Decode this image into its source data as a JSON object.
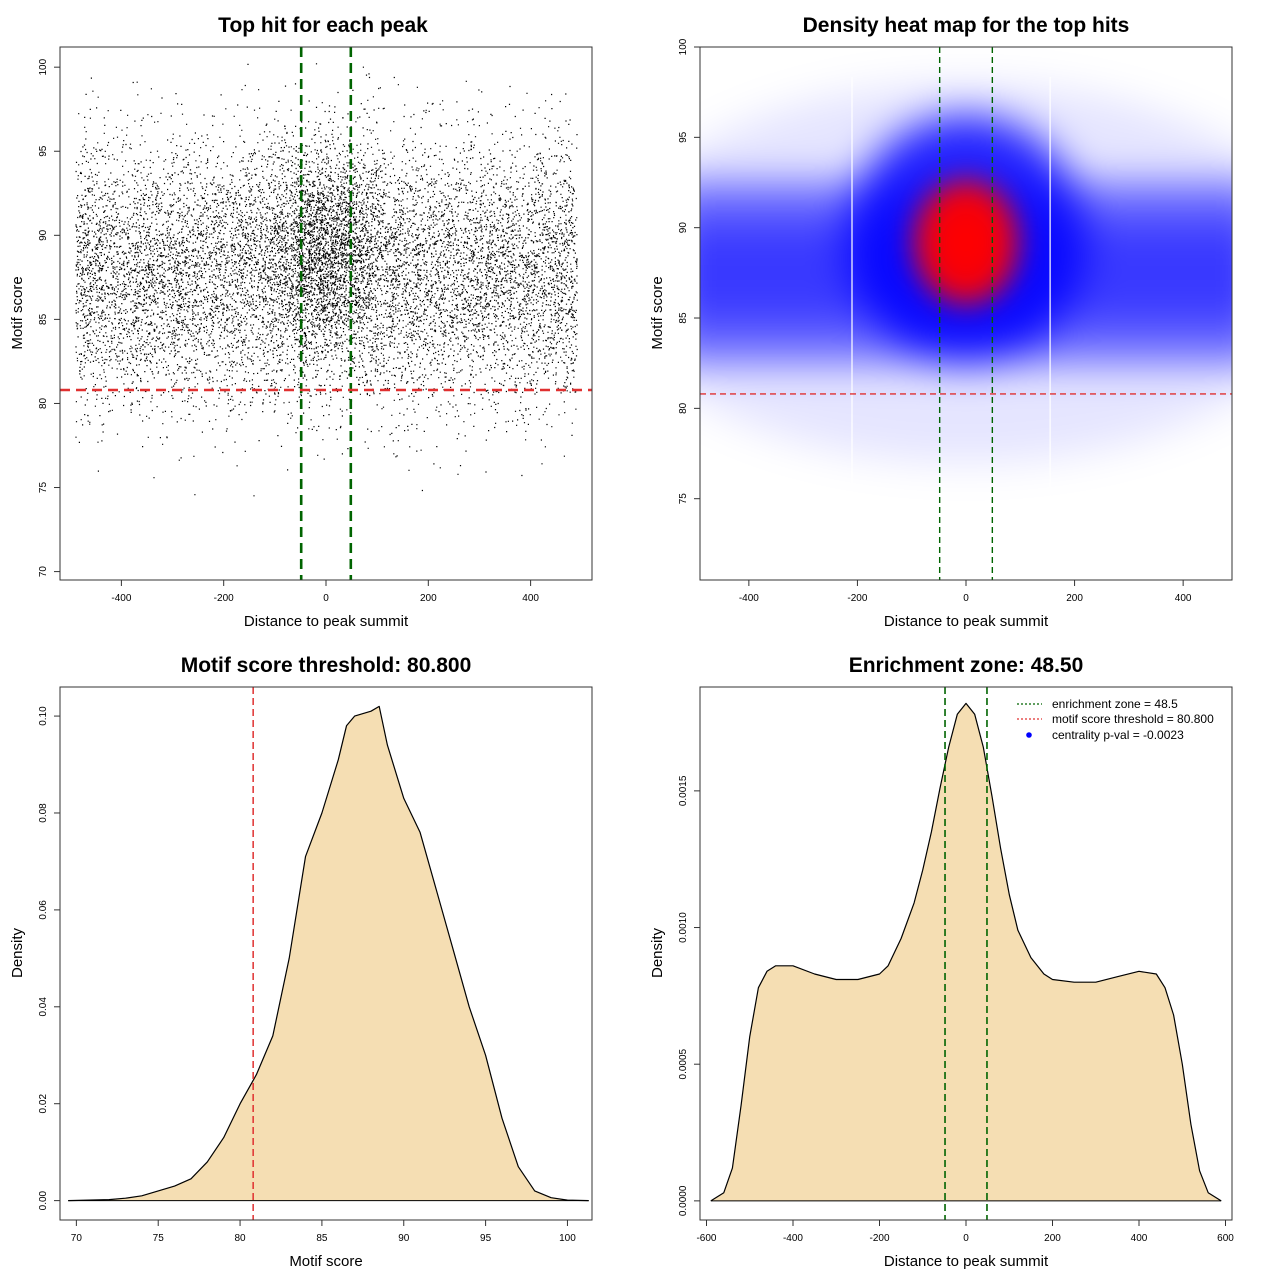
{
  "figure": {
    "background": "#ffffff"
  },
  "colors": {
    "points": "#000000",
    "enrichment_line": "#006400",
    "threshold_line": "#e03030",
    "density_fill": "#f5deb3",
    "heat_low": "#ffffff",
    "heat_mid": "#0000ff",
    "heat_high": "#ff0000",
    "legend_point": "#0000ff"
  },
  "panels": {
    "scatter": {
      "title": "Top hit for each peak",
      "xlabel": "Distance to peak summit",
      "ylabel": "Motif score",
      "xticks": [
        "-400",
        "-200",
        "0",
        "200",
        "400"
      ],
      "yticks": [
        "70",
        "75",
        "80",
        "85",
        "90",
        "95",
        "100"
      ]
    },
    "heatmap": {
      "title": "Density heat map for the top hits",
      "xlabel": "Distance to peak summit",
      "ylabel": "Motif score",
      "xticks": [
        "-400",
        "-200",
        "0",
        "200",
        "400"
      ],
      "yticks": [
        "75",
        "80",
        "85",
        "90",
        "95",
        "100"
      ]
    },
    "score_density": {
      "title": "Motif score threshold: 80.800",
      "xlabel": "Motif score",
      "ylabel": "Density",
      "xticks": [
        "70",
        "75",
        "80",
        "85",
        "90",
        "95",
        "100"
      ],
      "yticks": [
        "0.00",
        "0.02",
        "0.04",
        "0.06",
        "0.08",
        "0.10"
      ]
    },
    "distance_density": {
      "title": "Enrichment zone: 48.50",
      "xlabel": "Distance to peak summit",
      "ylabel": "Density",
      "xticks": [
        "-600",
        "-400",
        "-200",
        "0",
        "200",
        "400",
        "600"
      ],
      "yticks": [
        "0.0000",
        "0.0005",
        "0.0010",
        "0.0015"
      ],
      "legend": {
        "enrichment": "enrichment zone = 48.5",
        "threshold": "motif score threshold = 80.800",
        "pval": "centrality p-val = -0.0023"
      }
    }
  },
  "chart_data": [
    {
      "type": "scatter",
      "title": "Top hit for each peak",
      "xlabel": "Distance to peak summit",
      "ylabel": "Motif score",
      "xlim": [
        -520,
        520
      ],
      "ylim": [
        69.5,
        101.2
      ],
      "n_points": 16000,
      "x_range": [
        -490,
        490
      ],
      "score_mean": 87.8,
      "score_sd": 3.9,
      "central_cluster": {
        "x_center": 0,
        "x_sd": 60,
        "score_mean": 89.5,
        "fraction": 0.12
      },
      "vlines": [
        -48.5,
        48.5
      ],
      "hline": 80.8
    },
    {
      "type": "heatmap",
      "title": "Density heat map for the top hits",
      "xlabel": "Distance to peak summit",
      "ylabel": "Motif score",
      "xlim": [
        -490,
        490
      ],
      "ylim": [
        70.5,
        100
      ],
      "hotspot": {
        "x": 0,
        "y": 89.2
      },
      "band_y": 87.0,
      "vlines": [
        -48.5,
        48.5
      ],
      "hline": 80.8,
      "grid": false
    },
    {
      "type": "area",
      "title": "Motif score threshold: 80.800",
      "xlabel": "Motif score",
      "ylabel": "Density",
      "xlim": [
        69,
        101.5
      ],
      "ylim": [
        -0.004,
        0.106
      ],
      "x": [
        69.5,
        72,
        73,
        74,
        75,
        76,
        77,
        78,
        79,
        80,
        81,
        82,
        83,
        84,
        85,
        86,
        86.5,
        87,
        88,
        88.5,
        89,
        90,
        91,
        92,
        93,
        94,
        95,
        96,
        97,
        98,
        99,
        100,
        101.3
      ],
      "y": [
        0.0,
        0.0002,
        0.0005,
        0.001,
        0.002,
        0.003,
        0.0045,
        0.008,
        0.013,
        0.02,
        0.026,
        0.034,
        0.05,
        0.071,
        0.08,
        0.091,
        0.098,
        0.1,
        0.101,
        0.102,
        0.094,
        0.083,
        0.076,
        0.064,
        0.052,
        0.04,
        0.03,
        0.017,
        0.007,
        0.002,
        0.0006,
        0.0001,
        0.0
      ],
      "vline": 80.8
    },
    {
      "type": "area",
      "title": "Enrichment zone: 48.50",
      "xlabel": "Distance to peak summit",
      "ylabel": "Density",
      "xlim": [
        -615,
        615
      ],
      "ylim": [
        -7e-05,
        0.00188
      ],
      "x": [
        -590,
        -560,
        -540,
        -520,
        -500,
        -480,
        -460,
        -440,
        -400,
        -350,
        -300,
        -250,
        -200,
        -180,
        -150,
        -120,
        -100,
        -80,
        -60,
        -40,
        -20,
        0,
        20,
        40,
        60,
        80,
        100,
        120,
        150,
        180,
        200,
        250,
        300,
        350,
        400,
        440,
        460,
        480,
        500,
        520,
        540,
        560,
        590
      ],
      "y": [
        0.0,
        3e-05,
        0.00012,
        0.00035,
        0.0006,
        0.00078,
        0.00084,
        0.00086,
        0.00086,
        0.00083,
        0.00081,
        0.00081,
        0.00083,
        0.00086,
        0.00096,
        0.00109,
        0.00121,
        0.00135,
        0.00151,
        0.00166,
        0.00178,
        0.00182,
        0.00178,
        0.00166,
        0.00148,
        0.00129,
        0.00112,
        0.00099,
        0.00089,
        0.00083,
        0.00081,
        0.0008,
        0.0008,
        0.00082,
        0.00084,
        0.00083,
        0.00078,
        0.00068,
        0.0005,
        0.00028,
        0.00011,
        3e-05,
        0.0
      ],
      "vlines": [
        -48.5,
        48.5
      ],
      "legend": [
        "enrichment zone = 48.5",
        "motif score threshold = 80.800",
        "centrality p-val = -0.0023"
      ],
      "legend_position": "top-right"
    }
  ]
}
